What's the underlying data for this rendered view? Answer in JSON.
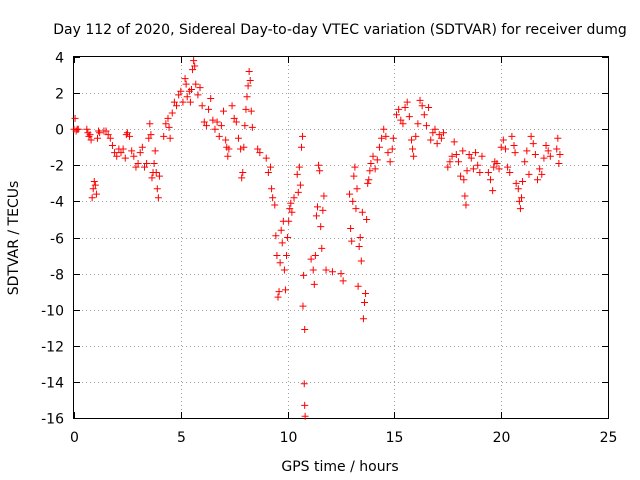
{
  "chart_data": {
    "type": "scatter",
    "title": "Day 112 of 2020, Sidereal Day-to-day VTEC variation (SDTVAR) for receiver dumg",
    "xlabel": "GPS time / hours",
    "ylabel": "SDTVAR / TECUs",
    "xlim": [
      0,
      25
    ],
    "ylim": [
      -16,
      4
    ],
    "xticks": [
      0,
      5,
      10,
      15,
      20,
      25
    ],
    "yticks": [
      4,
      2,
      0,
      -2,
      -4,
      -6,
      -8,
      -10,
      -12,
      -14,
      -16
    ],
    "xtick_labels": [
      "0",
      "5",
      "10",
      "15",
      "20",
      "25"
    ],
    "ytick_labels": [
      "4",
      "2",
      "0",
      "-2",
      "-4",
      "-6",
      "-8",
      "-10",
      "-12",
      "-14",
      "-16"
    ],
    "grid": true,
    "marker": "plus",
    "color": "#ff0000",
    "series": [
      {
        "name": "SDTVAR",
        "points": [
          [
            0.0,
            0.0
          ],
          [
            0.05,
            0.6
          ],
          [
            0.1,
            -0.1
          ],
          [
            0.15,
            0.0
          ],
          [
            0.2,
            0.0
          ],
          [
            0.6,
            0.0
          ],
          [
            0.65,
            -0.2
          ],
          [
            0.7,
            -0.4
          ],
          [
            0.75,
            -0.3
          ],
          [
            0.8,
            -0.6
          ],
          [
            0.85,
            -3.8
          ],
          [
            0.9,
            -3.3
          ],
          [
            0.95,
            -2.9
          ],
          [
            1.0,
            -3.1
          ],
          [
            1.05,
            -3.6
          ],
          [
            1.1,
            -0.5
          ],
          [
            1.15,
            -0.1
          ],
          [
            1.2,
            -0.2
          ],
          [
            1.4,
            -0.1
          ],
          [
            1.5,
            -0.1
          ],
          [
            1.6,
            -0.3
          ],
          [
            1.7,
            -0.5
          ],
          [
            1.8,
            -0.9
          ],
          [
            1.9,
            -1.3
          ],
          [
            2.0,
            -1.5
          ],
          [
            2.1,
            -1.1
          ],
          [
            2.2,
            -1.3
          ],
          [
            2.3,
            -1.1
          ],
          [
            2.4,
            -1.6
          ],
          [
            2.45,
            -0.3
          ],
          [
            2.5,
            -0.2
          ],
          [
            2.6,
            -0.4
          ],
          [
            2.7,
            -1.2
          ],
          [
            2.8,
            -1.5
          ],
          [
            2.9,
            -2.1
          ],
          [
            3.0,
            -1.9
          ],
          [
            3.1,
            -1.3
          ],
          [
            3.2,
            -1.0
          ],
          [
            3.3,
            -2.1
          ],
          [
            3.4,
            -1.9
          ],
          [
            3.5,
            -0.5
          ],
          [
            3.55,
            0.3
          ],
          [
            3.6,
            -0.3
          ],
          [
            3.65,
            -2.7
          ],
          [
            3.7,
            -2.4
          ],
          [
            3.75,
            -1.9
          ],
          [
            3.8,
            -1.2
          ],
          [
            3.85,
            -2.4
          ],
          [
            3.9,
            -3.3
          ],
          [
            3.95,
            -3.8
          ],
          [
            4.0,
            -2.6
          ],
          [
            4.2,
            -0.4
          ],
          [
            4.3,
            0.3
          ],
          [
            4.4,
            0.6
          ],
          [
            4.45,
            0.1
          ],
          [
            4.5,
            -0.5
          ],
          [
            4.6,
            0.9
          ],
          [
            4.7,
            1.5
          ],
          [
            4.8,
            1.3
          ],
          [
            4.9,
            1.9
          ],
          [
            5.0,
            2.1
          ],
          [
            5.1,
            1.5
          ],
          [
            5.2,
            2.8
          ],
          [
            5.25,
            2.5
          ],
          [
            5.3,
            1.8
          ],
          [
            5.4,
            2.1
          ],
          [
            5.45,
            1.5
          ],
          [
            5.5,
            2.2
          ],
          [
            5.55,
            3.3
          ],
          [
            5.6,
            3.8
          ],
          [
            5.65,
            3.5
          ],
          [
            5.7,
            2.5
          ],
          [
            5.8,
            1.9
          ],
          [
            5.9,
            2.3
          ],
          [
            6.0,
            1.3
          ],
          [
            6.1,
            0.4
          ],
          [
            6.2,
            0.2
          ],
          [
            6.3,
            1.1
          ],
          [
            6.4,
            1.7
          ],
          [
            6.5,
            0.5
          ],
          [
            6.6,
            0.0
          ],
          [
            6.7,
            0.4
          ],
          [
            6.8,
            -0.4
          ],
          [
            6.9,
            0.2
          ],
          [
            7.0,
            1.0
          ],
          [
            7.1,
            -0.6
          ],
          [
            7.15,
            -1.0
          ],
          [
            7.2,
            -1.5
          ],
          [
            7.25,
            -1.1
          ],
          [
            7.4,
            1.3
          ],
          [
            7.5,
            0.6
          ],
          [
            7.6,
            0.4
          ],
          [
            7.7,
            -0.5
          ],
          [
            7.8,
            -1.1
          ],
          [
            7.85,
            -2.7
          ],
          [
            7.9,
            -2.4
          ],
          [
            7.95,
            -1.0
          ],
          [
            8.0,
            0.2
          ],
          [
            8.05,
            1.1
          ],
          [
            8.1,
            1.8
          ],
          [
            8.15,
            2.4
          ],
          [
            8.2,
            3.2
          ],
          [
            8.25,
            2.7
          ],
          [
            8.3,
            1.0
          ],
          [
            8.35,
            0.1
          ],
          [
            8.6,
            -1.1
          ],
          [
            8.7,
            -1.3
          ],
          [
            9.0,
            -1.6
          ],
          [
            9.1,
            -2.4
          ],
          [
            9.2,
            -2.1
          ],
          [
            9.25,
            -3.3
          ],
          [
            9.3,
            -3.8
          ],
          [
            9.4,
            -4.2
          ],
          [
            9.45,
            -5.9
          ],
          [
            9.5,
            -7.0
          ],
          [
            9.55,
            -9.3
          ],
          [
            9.6,
            -9.0
          ],
          [
            9.65,
            -7.4
          ],
          [
            9.7,
            -5.6
          ],
          [
            9.75,
            -6.3
          ],
          [
            9.8,
            -5.1
          ],
          [
            9.85,
            -7.8
          ],
          [
            9.9,
            -8.9
          ],
          [
            9.95,
            -7.0
          ],
          [
            10.0,
            -6.0
          ],
          [
            10.05,
            -5.1
          ],
          [
            10.1,
            -4.4
          ],
          [
            10.15,
            -4.1
          ],
          [
            10.2,
            -4.6
          ],
          [
            10.3,
            -3.8
          ],
          [
            10.45,
            -2.5
          ],
          [
            10.5,
            -3.5
          ],
          [
            10.55,
            -2.1
          ],
          [
            10.6,
            -3.1
          ],
          [
            10.65,
            -1.0
          ],
          [
            10.7,
            -0.4
          ],
          [
            10.75,
            -8.1
          ],
          [
            10.8,
            -11.1
          ],
          [
            10.72,
            -9.8
          ],
          [
            10.78,
            -14.1
          ],
          [
            10.8,
            -15.3
          ],
          [
            10.82,
            -15.9
          ],
          [
            11.1,
            -7.2
          ],
          [
            11.2,
            -7.8
          ],
          [
            11.25,
            -8.6
          ],
          [
            11.3,
            -7.0
          ],
          [
            11.35,
            -4.8
          ],
          [
            11.4,
            -4.3
          ],
          [
            11.45,
            -2.0
          ],
          [
            11.5,
            -2.3
          ],
          [
            11.55,
            -5.4
          ],
          [
            11.6,
            -6.6
          ],
          [
            11.65,
            -4.5
          ],
          [
            11.7,
            -3.7
          ],
          [
            11.8,
            -7.8
          ],
          [
            12.1,
            -7.9
          ],
          [
            12.5,
            -8.0
          ],
          [
            12.6,
            -8.4
          ],
          [
            12.9,
            -3.6
          ],
          [
            12.95,
            -5.5
          ],
          [
            13.0,
            -6.2
          ],
          [
            13.05,
            -4.0
          ],
          [
            13.1,
            -2.6
          ],
          [
            13.15,
            -2.1
          ],
          [
            13.2,
            -4.4
          ],
          [
            13.25,
            -3.3
          ],
          [
            13.3,
            -8.7
          ],
          [
            13.35,
            -6.5
          ],
          [
            13.4,
            -6.0
          ],
          [
            13.45,
            -7.3
          ],
          [
            13.5,
            -4.6
          ],
          [
            13.55,
            -10.5
          ],
          [
            13.6,
            -9.6
          ],
          [
            13.65,
            -9.1
          ],
          [
            13.7,
            -5.0
          ],
          [
            13.75,
            -3.0
          ],
          [
            13.8,
            -2.8
          ],
          [
            13.85,
            -2.3
          ],
          [
            13.9,
            -1.9
          ],
          [
            14.0,
            -1.5
          ],
          [
            14.1,
            -2.2
          ],
          [
            14.2,
            -1.7
          ],
          [
            14.3,
            -1.0
          ],
          [
            14.4,
            -0.5
          ],
          [
            14.5,
            0.0
          ],
          [
            14.6,
            -0.4
          ],
          [
            14.7,
            -1.3
          ],
          [
            14.8,
            -1.8
          ],
          [
            14.9,
            -1.1
          ],
          [
            14.95,
            -0.5
          ],
          [
            15.1,
            0.8
          ],
          [
            15.2,
            1.1
          ],
          [
            15.3,
            0.5
          ],
          [
            15.4,
            0.3
          ],
          [
            15.5,
            1.2
          ],
          [
            15.6,
            1.5
          ],
          [
            15.7,
            0.7
          ],
          [
            15.8,
            -0.6
          ],
          [
            15.85,
            -1.1
          ],
          [
            15.9,
            -1.5
          ],
          [
            16.0,
            -0.4
          ],
          [
            16.1,
            0.3
          ],
          [
            16.2,
            1.6
          ],
          [
            16.3,
            1.3
          ],
          [
            16.4,
            0.8
          ],
          [
            16.5,
            0.2
          ],
          [
            16.6,
            1.2
          ],
          [
            16.7,
            -0.6
          ],
          [
            16.8,
            -0.2
          ],
          [
            16.9,
            0.0
          ],
          [
            17.0,
            -0.8
          ],
          [
            17.1,
            -0.3
          ],
          [
            17.2,
            -0.5
          ],
          [
            17.3,
            -0.2
          ],
          [
            17.5,
            -2.1
          ],
          [
            17.6,
            -1.8
          ],
          [
            17.7,
            -1.5
          ],
          [
            17.8,
            -0.7
          ],
          [
            17.9,
            -1.4
          ],
          [
            18.0,
            -1.8
          ],
          [
            18.1,
            -2.6
          ],
          [
            18.2,
            -1.2
          ],
          [
            18.25,
            -2.8
          ],
          [
            18.3,
            -3.7
          ],
          [
            18.35,
            -4.2
          ],
          [
            18.4,
            -2.3
          ],
          [
            18.5,
            -1.4
          ],
          [
            18.6,
            -1.6
          ],
          [
            18.7,
            -2.2
          ],
          [
            18.8,
            -1.3
          ],
          [
            18.9,
            -2.0
          ],
          [
            19.0,
            -2.4
          ],
          [
            19.1,
            -1.5
          ],
          [
            19.4,
            -2.4
          ],
          [
            19.5,
            -2.8
          ],
          [
            19.6,
            -3.4
          ],
          [
            19.65,
            -2.1
          ],
          [
            19.7,
            -1.8
          ],
          [
            19.8,
            -1.9
          ],
          [
            19.9,
            -2.2
          ],
          [
            20.0,
            -1.0
          ],
          [
            20.1,
            -0.6
          ],
          [
            20.2,
            -1.1
          ],
          [
            20.3,
            -2.1
          ],
          [
            20.4,
            -2.4
          ],
          [
            20.5,
            -0.4
          ],
          [
            20.6,
            -0.9
          ],
          [
            20.65,
            -1.3
          ],
          [
            20.7,
            -3.0
          ],
          [
            20.8,
            -3.3
          ],
          [
            20.85,
            -4.0
          ],
          [
            20.9,
            -4.4
          ],
          [
            20.95,
            -3.8
          ],
          [
            21.0,
            -2.9
          ],
          [
            21.1,
            -1.8
          ],
          [
            21.2,
            -1.2
          ],
          [
            21.3,
            -2.5
          ],
          [
            21.4,
            -0.4
          ],
          [
            21.5,
            -0.8
          ],
          [
            21.6,
            -1.4
          ],
          [
            21.7,
            -2.8
          ],
          [
            21.8,
            -2.2
          ],
          [
            21.9,
            -2.5
          ],
          [
            22.0,
            -1.6
          ],
          [
            22.1,
            -0.9
          ],
          [
            22.2,
            -1.2
          ],
          [
            22.3,
            -1.5
          ],
          [
            22.6,
            -1.1
          ],
          [
            22.65,
            -0.5
          ],
          [
            22.7,
            -1.9
          ],
          [
            22.75,
            -1.4
          ]
        ]
      }
    ]
  }
}
